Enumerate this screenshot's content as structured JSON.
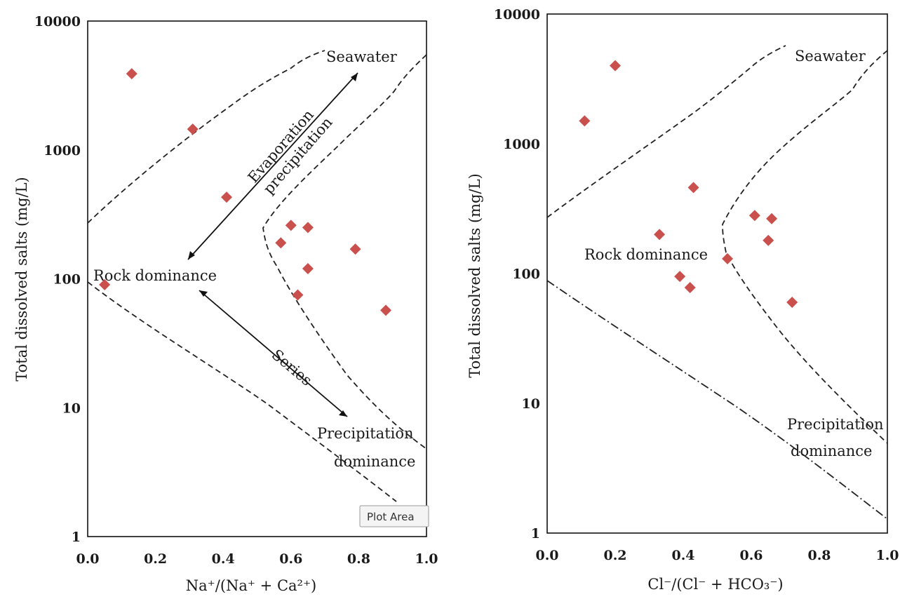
{
  "chart_data": [
    {
      "type": "scatter",
      "title": "",
      "xlabel": "Na⁺/(Na⁺ + Ca²⁺)",
      "ylabel": "Total dissolved salts (mg/L)",
      "xlim": [
        0,
        1
      ],
      "ylim": [
        1,
        10000
      ],
      "yscale": "log",
      "x_ticks": [
        "0.0",
        "0.2",
        "0.4",
        "0.6",
        "0.8",
        "1.0"
      ],
      "y_ticks": [
        "1",
        "10",
        "100",
        "1000",
        "10000"
      ],
      "grid": false,
      "marker": "diamond",
      "marker_color": "#c9504d",
      "points": [
        {
          "x": 0.05,
          "y": 90
        },
        {
          "x": 0.13,
          "y": 3900
        },
        {
          "x": 0.31,
          "y": 1450
        },
        {
          "x": 0.41,
          "y": 430
        },
        {
          "x": 0.57,
          "y": 190
        },
        {
          "x": 0.6,
          "y": 260
        },
        {
          "x": 0.62,
          "y": 75
        },
        {
          "x": 0.65,
          "y": 250
        },
        {
          "x": 0.65,
          "y": 120
        },
        {
          "x": 0.79,
          "y": 170
        },
        {
          "x": 0.88,
          "y": 57
        }
      ],
      "annotations": {
        "seawater": "Seawater",
        "evaporation": "Evaporation",
        "precipitation_word": "precipitation",
        "rock": "Rock dominance",
        "series": "Series",
        "precip_line1": "Precipitation",
        "precip_line2": "dominance"
      },
      "tooltip": "Plot Area"
    },
    {
      "type": "scatter",
      "title": "",
      "xlabel": "Cl⁻/(Cl⁻ + HCO₃⁻)",
      "ylabel": "Total dissolved salts (mg/L)",
      "xlim": [
        0,
        1
      ],
      "ylim": [
        1,
        10000
      ],
      "yscale": "log",
      "x_ticks": [
        "0.0",
        "0.2",
        "0.4",
        "0.6",
        "0.8",
        "1.0"
      ],
      "y_ticks": [
        "1",
        "10",
        "100",
        "1000",
        "10000"
      ],
      "grid": false,
      "marker": "diamond",
      "marker_color": "#c9504d",
      "points": [
        {
          "x": 0.11,
          "y": 1500
        },
        {
          "x": 0.2,
          "y": 4000
        },
        {
          "x": 0.33,
          "y": 200
        },
        {
          "x": 0.39,
          "y": 95
        },
        {
          "x": 0.42,
          "y": 78
        },
        {
          "x": 0.43,
          "y": 460
        },
        {
          "x": 0.53,
          "y": 130
        },
        {
          "x": 0.61,
          "y": 280
        },
        {
          "x": 0.65,
          "y": 180
        },
        {
          "x": 0.66,
          "y": 265
        },
        {
          "x": 0.72,
          "y": 60
        }
      ],
      "annotations": {
        "seawater": "Seawater",
        "rock": "Rock dominance",
        "precip_line1": "Precipitation",
        "precip_line2": "dominance"
      }
    }
  ]
}
